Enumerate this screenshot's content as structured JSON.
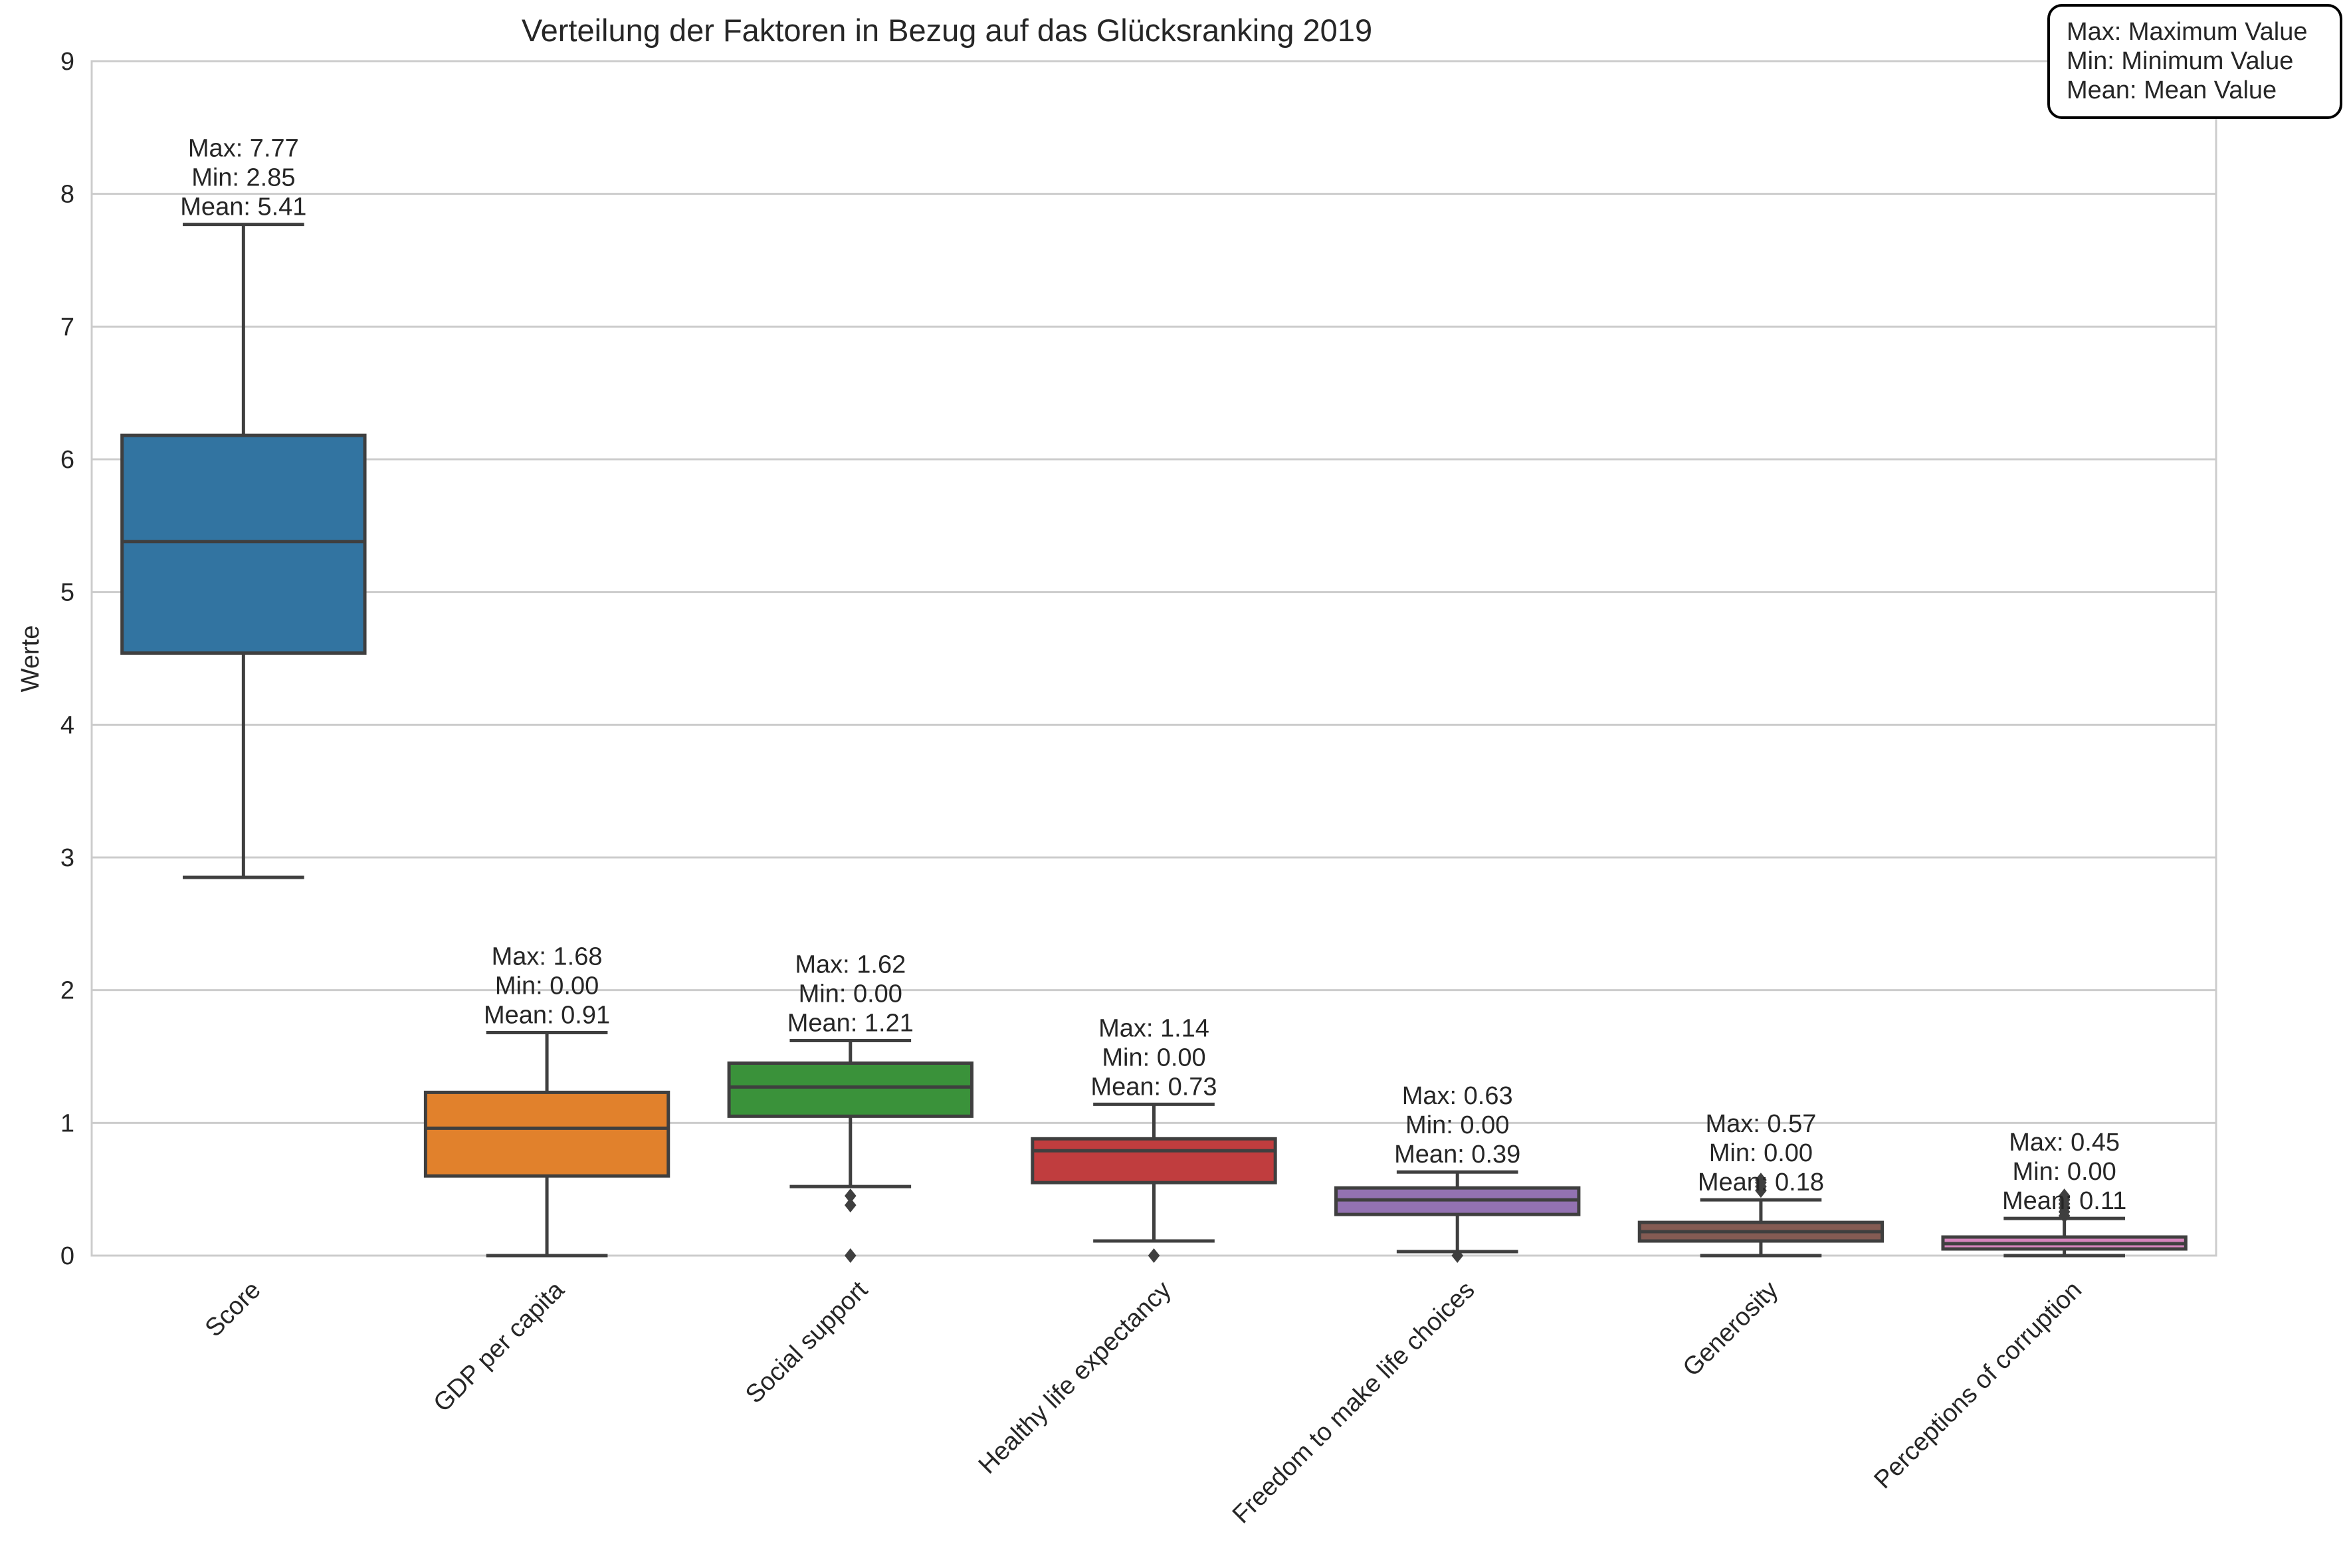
{
  "chart_data": {
    "type": "box",
    "title": "Verteilung der Faktoren in Bezug auf das Glücksranking 2019",
    "xlabel": "",
    "ylabel": "Werte",
    "ylim": [
      0,
      9
    ],
    "yticks": [
      0,
      1,
      2,
      3,
      4,
      5,
      6,
      7,
      8,
      9
    ],
    "grid": true,
    "legend_position": "top-right",
    "legend_lines": [
      "Max: Maximum Value",
      "Min: Minimum Value",
      "Mean: Mean Value"
    ],
    "categories": [
      "Score",
      "GDP per capita",
      "Social support",
      "Healthy life expectancy",
      "Freedom to make life choices",
      "Generosity",
      "Perceptions of corruption"
    ],
    "colors": [
      "#3274a1",
      "#e1812c",
      "#3a923a",
      "#c03d3e",
      "#9372b2",
      "#845b53",
      "#d684bd"
    ],
    "series": [
      {
        "category": "Score",
        "q1": 4.54,
        "median": 5.38,
        "q3": 6.18,
        "whisker_low": 2.85,
        "whisker_high": 7.77,
        "outliers": [],
        "annotation": [
          "Max: 7.77",
          "Min: 2.85",
          "Mean: 5.41"
        ]
      },
      {
        "category": "GDP per capita",
        "q1": 0.6,
        "median": 0.96,
        "q3": 1.23,
        "whisker_low": 0.0,
        "whisker_high": 1.68,
        "outliers": [],
        "annotation": [
          "Max: 1.68",
          "Min: 0.00",
          "Mean: 0.91"
        ]
      },
      {
        "category": "Social support",
        "q1": 1.05,
        "median": 1.27,
        "q3": 1.45,
        "whisker_low": 0.52,
        "whisker_high": 1.62,
        "outliers": [
          0.45,
          0.38,
          0.0
        ],
        "annotation": [
          "Max: 1.62",
          "Min: 0.00",
          "Mean: 1.21"
        ]
      },
      {
        "category": "Healthy life expectancy",
        "q1": 0.55,
        "median": 0.79,
        "q3": 0.88,
        "whisker_low": 0.11,
        "whisker_high": 1.14,
        "outliers": [
          0.0
        ],
        "annotation": [
          "Max: 1.14",
          "Min: 0.00",
          "Mean: 0.73"
        ]
      },
      {
        "category": "Freedom to make life choices",
        "q1": 0.31,
        "median": 0.42,
        "q3": 0.51,
        "whisker_low": 0.03,
        "whisker_high": 0.63,
        "outliers": [
          0.0
        ],
        "annotation": [
          "Max: 0.63",
          "Min: 0.00",
          "Mean: 0.39"
        ]
      },
      {
        "category": "Generosity",
        "q1": 0.11,
        "median": 0.18,
        "q3": 0.25,
        "whisker_low": 0.0,
        "whisker_high": 0.42,
        "outliers": [
          0.49,
          0.52,
          0.55,
          0.57
        ],
        "annotation": [
          "Max: 0.57",
          "Min: 0.00",
          "Mean: 0.18"
        ]
      },
      {
        "category": "Perceptions of corruption",
        "q1": 0.05,
        "median": 0.09,
        "q3": 0.14,
        "whisker_low": 0.0,
        "whisker_high": 0.28,
        "outliers": [
          0.3,
          0.33,
          0.36,
          0.39,
          0.42,
          0.45
        ],
        "annotation": [
          "Max: 0.45",
          "Min: 0.00",
          "Mean: 0.11"
        ]
      }
    ]
  }
}
